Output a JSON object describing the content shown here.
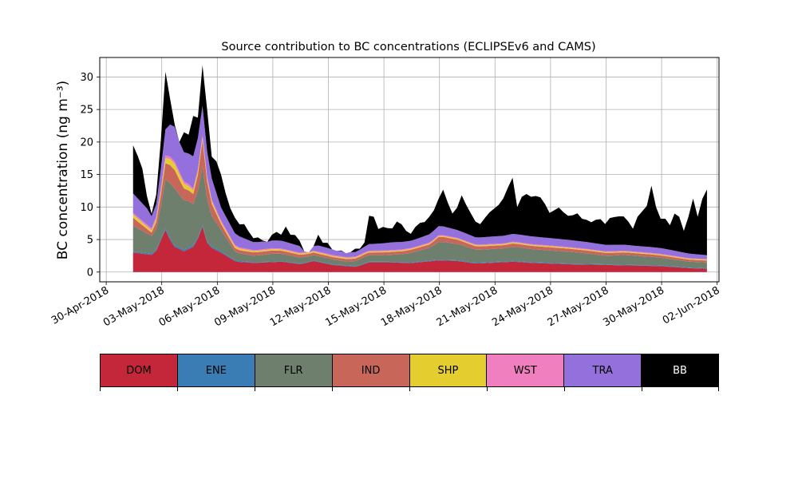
{
  "chart_data": {
    "type": "area",
    "title": "Source contribution to BC concentrations (ECLIPSEv6 and CAMS)",
    "ylabel": "BC concentration (ng m⁻³)",
    "xlabel": "",
    "ylim": [
      -1.5,
      33
    ],
    "xlim_days": [
      -0.35,
      33.1
    ],
    "grid": true,
    "x_start_day": 1.45,
    "x_end_day": 32.45,
    "x_step_days": 0.25,
    "x_origin_label": "30-Apr-2018",
    "x_tick_days": [
      0,
      3,
      6,
      9,
      12,
      15,
      18,
      21,
      24,
      27,
      30,
      33
    ],
    "x_tick_labels": [
      "30-Apr-2018",
      "03-May-2018",
      "06-May-2018",
      "09-May-2018",
      "12-May-2018",
      "15-May-2018",
      "18-May-2018",
      "21-May-2018",
      "24-May-2018",
      "27-May-2018",
      "30-May-2018",
      "02-Jun-2018"
    ],
    "y_ticks": [
      0,
      5,
      10,
      15,
      20,
      25,
      30
    ],
    "total_knots": [
      [
        1.45,
        19.5
      ],
      [
        1.6,
        14
      ],
      [
        1.75,
        19.8
      ],
      [
        2.1,
        13
      ],
      [
        2.4,
        9
      ],
      [
        2.6,
        8.8
      ],
      [
        2.8,
        15
      ],
      [
        3.0,
        22
      ],
      [
        3.1,
        23
      ],
      [
        3.2,
        30.8
      ],
      [
        3.4,
        28.5
      ],
      [
        3.6,
        21
      ],
      [
        3.75,
        23.5
      ],
      [
        3.9,
        19
      ],
      [
        4.1,
        23
      ],
      [
        4.3,
        20
      ],
      [
        4.5,
        21.5
      ],
      [
        4.7,
        24
      ],
      [
        4.85,
        20.5
      ],
      [
        5.05,
        27
      ],
      [
        5.2,
        31.8
      ],
      [
        5.4,
        27
      ],
      [
        5.6,
        19
      ],
      [
        5.8,
        16.5
      ],
      [
        6.0,
        17.2
      ],
      [
        6.15,
        14
      ],
      [
        6.3,
        17
      ],
      [
        6.5,
        10.5
      ],
      [
        6.8,
        9.5
      ],
      [
        7.0,
        8
      ],
      [
        7.3,
        7
      ],
      [
        7.5,
        7.5
      ],
      [
        7.7,
        6.2
      ],
      [
        8.0,
        5
      ],
      [
        8.3,
        5.5
      ],
      [
        8.6,
        4.2
      ],
      [
        8.9,
        5.5
      ],
      [
        9.1,
        6.5
      ],
      [
        9.4,
        5.5
      ],
      [
        9.7,
        7
      ],
      [
        10.0,
        5.5
      ],
      [
        10.3,
        5.8
      ],
      [
        10.6,
        3.8
      ],
      [
        10.8,
        2.5
      ],
      [
        11.2,
        4
      ],
      [
        11.4,
        6
      ],
      [
        11.7,
        4.5
      ],
      [
        12.0,
        4.5
      ],
      [
        12.3,
        3
      ],
      [
        12.6,
        3.5
      ],
      [
        13.0,
        2.8
      ],
      [
        13.3,
        3.2
      ],
      [
        13.6,
        4
      ],
      [
        13.8,
        3.2
      ],
      [
        14.0,
        5
      ],
      [
        14.3,
        10.5
      ],
      [
        14.6,
        6.5
      ],
      [
        15.0,
        7
      ],
      [
        15.4,
        6.5
      ],
      [
        15.8,
        8.2
      ],
      [
        16.1,
        6.5
      ],
      [
        16.5,
        5.8
      ],
      [
        16.8,
        7.5
      ],
      [
        17.2,
        7.7
      ],
      [
        17.6,
        9
      ],
      [
        17.9,
        10.5
      ],
      [
        18.1,
        13.5
      ],
      [
        18.4,
        11
      ],
      [
        18.7,
        9
      ],
      [
        18.9,
        9.5
      ],
      [
        19.2,
        11.8
      ],
      [
        19.5,
        10
      ],
      [
        19.8,
        8.5
      ],
      [
        20.1,
        7
      ],
      [
        20.5,
        8.5
      ],
      [
        20.8,
        9.5
      ],
      [
        21.1,
        10
      ],
      [
        21.4,
        11
      ],
      [
        21.7,
        13
      ],
      [
        21.9,
        13.5
      ],
      [
        22.0,
        15.5
      ],
      [
        22.2,
        10
      ],
      [
        22.4,
        11.5
      ],
      [
        22.7,
        12
      ],
      [
        23.0,
        11.5
      ],
      [
        23.3,
        11.8
      ],
      [
        23.6,
        11.2
      ],
      [
        23.9,
        9
      ],
      [
        24.2,
        9.5
      ],
      [
        24.5,
        10
      ],
      [
        24.8,
        8.8
      ],
      [
        25.1,
        8.5
      ],
      [
        25.4,
        9.2
      ],
      [
        25.7,
        8.2
      ],
      [
        26.0,
        8
      ],
      [
        26.3,
        7.5
      ],
      [
        26.6,
        8.6
      ],
      [
        26.9,
        7.2
      ],
      [
        27.2,
        8.3
      ],
      [
        27.5,
        8.5
      ],
      [
        27.8,
        8.6
      ],
      [
        28.1,
        8.5
      ],
      [
        28.4,
        6.3
      ],
      [
        28.7,
        8.5
      ],
      [
        29.0,
        9.5
      ],
      [
        29.3,
        10.5
      ],
      [
        29.5,
        14.2
      ],
      [
        29.7,
        10
      ],
      [
        29.9,
        8.2
      ],
      [
        30.2,
        8.2
      ],
      [
        30.5,
        7
      ],
      [
        30.8,
        10
      ],
      [
        31.0,
        8
      ],
      [
        31.3,
        5.5
      ],
      [
        31.5,
        9.5
      ],
      [
        31.7,
        11.3
      ],
      [
        31.9,
        8
      ],
      [
        32.1,
        10
      ],
      [
        32.3,
        12.5
      ],
      [
        32.45,
        12.7
      ]
    ],
    "series": [
      {
        "name": "DOM",
        "color": "#c4273a",
        "knots": [
          [
            1.45,
            3
          ],
          [
            2.0,
            2.8
          ],
          [
            2.6,
            2.6
          ],
          [
            3.2,
            6.5
          ],
          [
            3.6,
            4
          ],
          [
            4.2,
            3.2
          ],
          [
            4.8,
            4
          ],
          [
            5.2,
            7
          ],
          [
            5.5,
            4
          ],
          [
            6.2,
            3
          ],
          [
            7.0,
            1.6
          ],
          [
            8.0,
            1.4
          ],
          [
            9.5,
            1.6
          ],
          [
            10.5,
            1.2
          ],
          [
            11.2,
            1.7
          ],
          [
            12.2,
            1.1
          ],
          [
            13.5,
            0.8
          ],
          [
            14.2,
            1.5
          ],
          [
            15.0,
            1.5
          ],
          [
            16.5,
            1.4
          ],
          [
            18.0,
            1.8
          ],
          [
            19.0,
            1.7
          ],
          [
            20.0,
            1.3
          ],
          [
            22.0,
            1.6
          ],
          [
            23.0,
            1.4
          ],
          [
            25.0,
            1.2
          ],
          [
            27.0,
            1.1
          ],
          [
            28.5,
            1
          ],
          [
            30.0,
            0.9
          ],
          [
            31.5,
            0.6
          ],
          [
            32.45,
            0.5
          ]
        ]
      },
      {
        "name": "ENE",
        "color": "#3a7db5",
        "knots": [
          [
            1.45,
            0.15
          ],
          [
            3.2,
            0.25
          ],
          [
            5.2,
            0.25
          ],
          [
            8.0,
            0.1
          ],
          [
            14.0,
            0.1
          ],
          [
            22.0,
            0.12
          ],
          [
            32.45,
            0.08
          ]
        ]
      },
      {
        "name": "FLR",
        "color": "#6e7f6e",
        "knots": [
          [
            1.45,
            4
          ],
          [
            2.2,
            3
          ],
          [
            2.6,
            2.5
          ],
          [
            2.9,
            4.5
          ],
          [
            3.2,
            7.5
          ],
          [
            3.6,
            9
          ],
          [
            4.0,
            8
          ],
          [
            4.5,
            7
          ],
          [
            4.8,
            6
          ],
          [
            5.2,
            9
          ],
          [
            5.6,
            5
          ],
          [
            6.2,
            3.3
          ],
          [
            7.0,
            1.2
          ],
          [
            8.0,
            1
          ],
          [
            9.0,
            1.2
          ],
          [
            10.0,
            1
          ],
          [
            11.0,
            0.8
          ],
          [
            12.0,
            0.8
          ],
          [
            13.0,
            0.6
          ],
          [
            14.0,
            1
          ],
          [
            15.0,
            1
          ],
          [
            16.0,
            1.2
          ],
          [
            17.5,
            2
          ],
          [
            18.0,
            2.8
          ],
          [
            19.0,
            2.5
          ],
          [
            20.0,
            2
          ],
          [
            21.5,
            2
          ],
          [
            22.0,
            2.2
          ],
          [
            23.0,
            2
          ],
          [
            25.0,
            1.8
          ],
          [
            26.0,
            1.6
          ],
          [
            27.0,
            1.3
          ],
          [
            28.0,
            1.5
          ],
          [
            29.5,
            1.3
          ],
          [
            30.5,
            1.1
          ],
          [
            31.5,
            0.9
          ],
          [
            32.45,
            0.9
          ]
        ]
      },
      {
        "name": "IND",
        "color": "#c8665a",
        "knots": [
          [
            1.45,
            1.2
          ],
          [
            2.5,
            0.5
          ],
          [
            3.2,
            2.5
          ],
          [
            3.6,
            3
          ],
          [
            4.2,
            1.8
          ],
          [
            4.8,
            1.5
          ],
          [
            5.2,
            4
          ],
          [
            5.6,
            2
          ],
          [
            6.2,
            0.9
          ],
          [
            7.0,
            0.5
          ],
          [
            9.0,
            0.5
          ],
          [
            12.0,
            0.35
          ],
          [
            14.0,
            0.4
          ],
          [
            17.5,
            0.5
          ],
          [
            18.0,
            0.8
          ],
          [
            20.0,
            0.5
          ],
          [
            24.0,
            0.5
          ],
          [
            28.0,
            0.4
          ],
          [
            32.45,
            0.3
          ]
        ]
      },
      {
        "name": "SHP",
        "color": "#e4cd2f",
        "knots": [
          [
            1.45,
            0.5
          ],
          [
            2.5,
            0.3
          ],
          [
            3.2,
            0.8
          ],
          [
            3.6,
            1
          ],
          [
            4.5,
            0.6
          ],
          [
            5.2,
            0.5
          ],
          [
            6.2,
            0.3
          ],
          [
            8.0,
            0.2
          ],
          [
            14.0,
            0.15
          ],
          [
            22.0,
            0.15
          ],
          [
            32.45,
            0.12
          ]
        ]
      },
      {
        "name": "WST",
        "color": "#f07fbf",
        "knots": [
          [
            1.45,
            0.25
          ],
          [
            3.2,
            0.4
          ],
          [
            5.2,
            0.3
          ],
          [
            8.0,
            0.15
          ],
          [
            32.45,
            0.1
          ]
        ]
      },
      {
        "name": "TRA",
        "color": "#9370db",
        "knots": [
          [
            1.45,
            3
          ],
          [
            2.2,
            2.5
          ],
          [
            2.6,
            1.5
          ],
          [
            3.2,
            4
          ],
          [
            3.6,
            5.5
          ],
          [
            4.2,
            4.5
          ],
          [
            4.8,
            5
          ],
          [
            5.2,
            4.5
          ],
          [
            5.6,
            3.5
          ],
          [
            6.2,
            2
          ],
          [
            7.0,
            1.8
          ],
          [
            8.0,
            1.2
          ],
          [
            9.5,
            1.2
          ],
          [
            10.5,
            1
          ],
          [
            12.0,
            0.9
          ],
          [
            13.5,
            0.7
          ],
          [
            14.2,
            1
          ],
          [
            15.5,
            1.2
          ],
          [
            16.5,
            1.1
          ],
          [
            18.0,
            1.4
          ],
          [
            19.0,
            1.2
          ],
          [
            20.0,
            1.1
          ],
          [
            22.0,
            1.2
          ],
          [
            23.0,
            1.2
          ],
          [
            25.0,
            1.1
          ],
          [
            27.0,
            1
          ],
          [
            28.5,
            0.9
          ],
          [
            30.0,
            0.9
          ],
          [
            31.5,
            0.7
          ],
          [
            32.45,
            0.6
          ]
        ]
      },
      {
        "name": "BB",
        "color": "#000000",
        "remainder": true
      }
    ]
  },
  "legend": {
    "items": [
      {
        "label": "DOM",
        "color": "#c4273a",
        "text_color": "#000000"
      },
      {
        "label": "ENE",
        "color": "#3a7db5",
        "text_color": "#000000"
      },
      {
        "label": "FLR",
        "color": "#6e7f6e",
        "text_color": "#000000"
      },
      {
        "label": "IND",
        "color": "#c8665a",
        "text_color": "#000000"
      },
      {
        "label": "SHP",
        "color": "#e4cd2f",
        "text_color": "#000000"
      },
      {
        "label": "WST",
        "color": "#f07fbf",
        "text_color": "#000000"
      },
      {
        "label": "TRA",
        "color": "#9370db",
        "text_color": "#000000"
      },
      {
        "label": "BB",
        "color": "#000000",
        "text_color": "#ffffff"
      }
    ]
  }
}
